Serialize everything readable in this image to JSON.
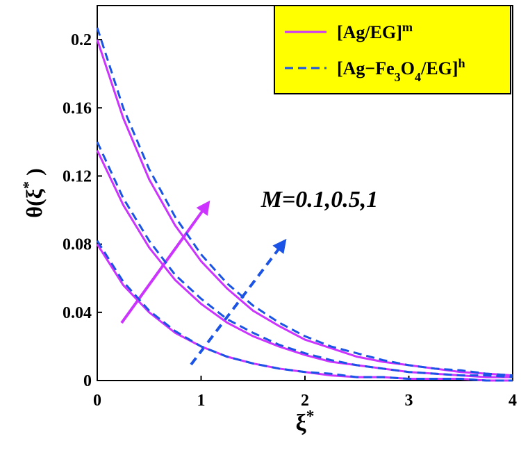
{
  "chart_data": {
    "type": "line",
    "x": [
      0,
      0.25,
      0.5,
      0.75,
      1,
      1.25,
      1.5,
      1.75,
      2,
      2.25,
      2.5,
      2.75,
      3,
      3.25,
      3.5,
      3.75,
      4
    ],
    "series": [
      {
        "name_parts": [
          {
            "text": "[Ag/EG]"
          },
          {
            "text": "m",
            "shift": "sup"
          }
        ],
        "color": "#cc33ff",
        "dashed": false,
        "values": [
          [
            0.08,
            0.056,
            0.04,
            0.028,
            0.02,
            0.014,
            0.01,
            0.007,
            0.005,
            0.003,
            0.002,
            0.002,
            0.001,
            0.001,
            0.001,
            0,
            0
          ],
          [
            0.135,
            0.103,
            0.078,
            0.059,
            0.045,
            0.034,
            0.026,
            0.02,
            0.015,
            0.011,
            0.009,
            0.007,
            0.005,
            0.004,
            0.003,
            0.002,
            0.002
          ],
          [
            0.2,
            0.154,
            0.118,
            0.091,
            0.07,
            0.054,
            0.041,
            0.032,
            0.024,
            0.019,
            0.014,
            0.011,
            0.009,
            0.007,
            0.005,
            0.004,
            0.003
          ]
        ]
      },
      {
        "name_parts": [
          {
            "text": "[Ag−Fe"
          },
          {
            "text": "3",
            "shift": "sub"
          },
          {
            "text": "O"
          },
          {
            "text": "4",
            "shift": "sub"
          },
          {
            "text": "/EG]"
          },
          {
            "text": "h",
            "shift": "sup"
          }
        ],
        "color": "#1a53e6",
        "dashed": true,
        "values": [
          [
            0.082,
            0.058,
            0.041,
            0.029,
            0.02,
            0.014,
            0.01,
            0.007,
            0.005,
            0.004,
            0.002,
            0.002,
            0.001,
            0.001,
            0.001,
            0,
            0
          ],
          [
            0.14,
            0.107,
            0.082,
            0.062,
            0.048,
            0.036,
            0.028,
            0.021,
            0.016,
            0.012,
            0.009,
            0.007,
            0.005,
            0.004,
            0.003,
            0.003,
            0.002
          ],
          [
            0.207,
            0.16,
            0.124,
            0.096,
            0.074,
            0.057,
            0.044,
            0.034,
            0.026,
            0.02,
            0.016,
            0.012,
            0.009,
            0.007,
            0.006,
            0.004,
            0.003
          ]
        ]
      }
    ],
    "xlabel_parts": [
      {
        "text": "ξ"
      },
      {
        "text": "*",
        "shift": "sup"
      }
    ],
    "ylabel_parts": [
      {
        "text": "θ(ξ"
      },
      {
        "text": "*",
        "shift": "sup"
      },
      {
        "text": " )"
      }
    ],
    "annotation": "M=0.1,0.5,1",
    "annotation_color": "#e62e2e",
    "legend_background": "#ffff00",
    "legend_position": "upper right",
    "xlim": [
      0,
      4
    ],
    "xticks": [
      0,
      1,
      2,
      3,
      4
    ],
    "ylim": [
      0,
      0.22
    ],
    "yticks": [
      0,
      0.04,
      0.08,
      0.12,
      0.16,
      0.2
    ]
  }
}
